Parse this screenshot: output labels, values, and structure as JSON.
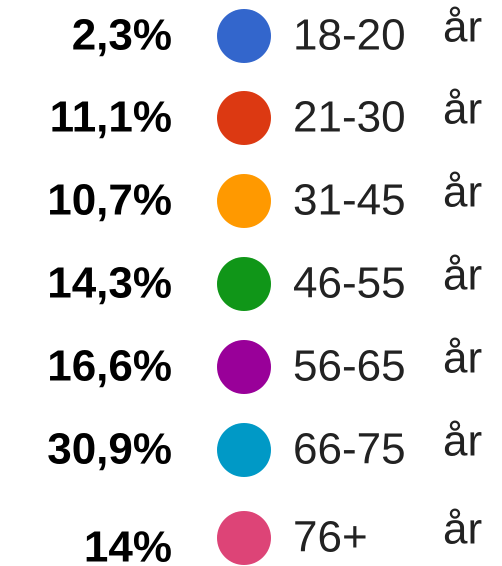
{
  "items": [
    {
      "percent": "2,3%",
      "color": "#3366cc",
      "range": "18-20",
      "unit": "år"
    },
    {
      "percent": "11,1%",
      "color": "#dc3912",
      "range": "21-30",
      "unit": "år"
    },
    {
      "percent": "10,7%",
      "color": "#ff9900",
      "range": "31-45",
      "unit": "år"
    },
    {
      "percent": "14,3%",
      "color": "#109618",
      "range": "46-55",
      "unit": "år"
    },
    {
      "percent": "16,6%",
      "color": "#990099",
      "range": "56-65",
      "unit": "år"
    },
    {
      "percent": "30,9%",
      "color": "#0099c6",
      "range": "66-75",
      "unit": "år"
    },
    {
      "percent": "14%",
      "color": "#dd4477",
      "range": "76+",
      "unit": "år"
    }
  ]
}
